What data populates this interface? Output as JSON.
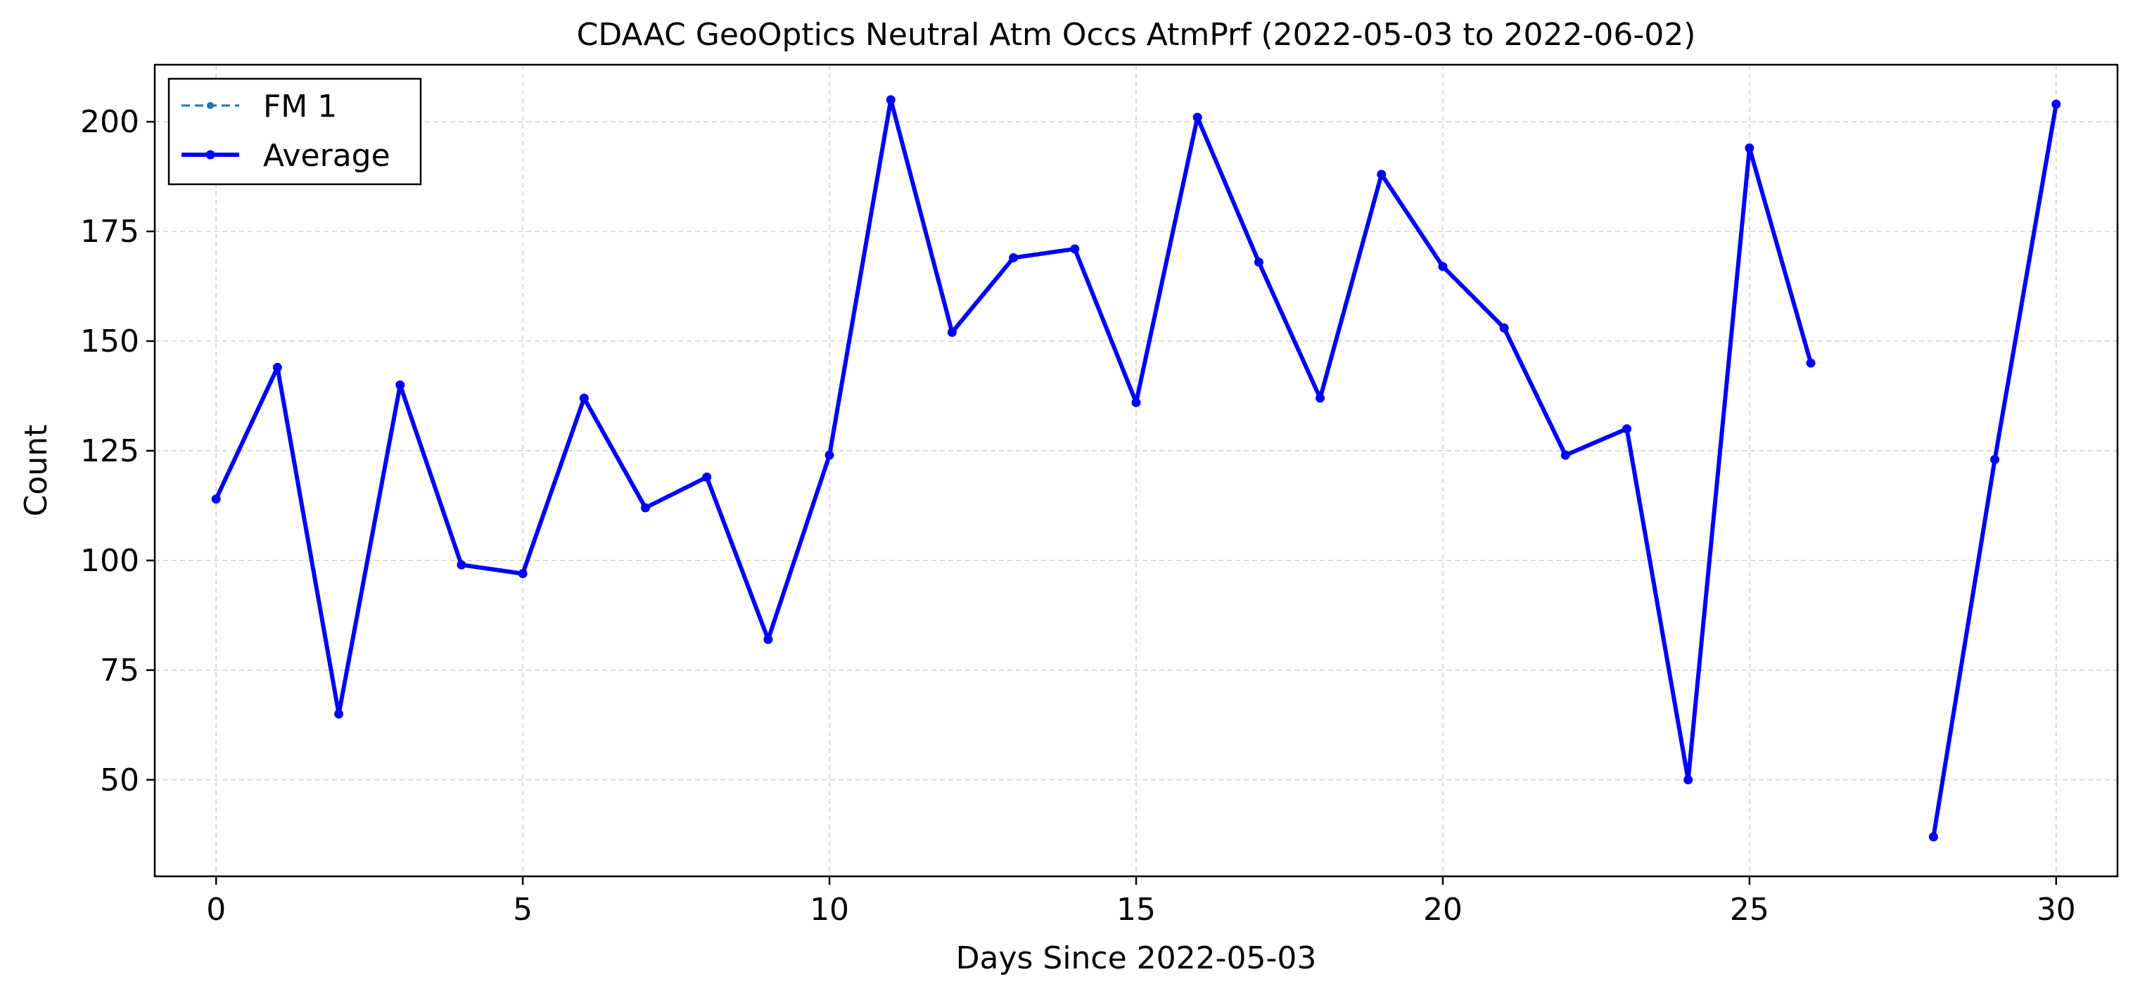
{
  "chart_data": {
    "type": "line",
    "title": "CDAAC GeoOptics Neutral Atm Occs AtmPrf (2022-05-03 to 2022-06-02)",
    "xlabel": "Days Since 2022-05-03",
    "ylabel": "Count",
    "xlim": [
      -1,
      31
    ],
    "ylim": [
      28,
      213
    ],
    "xticks": [
      0,
      5,
      10,
      15,
      20,
      25,
      30
    ],
    "yticks": [
      50,
      75,
      100,
      125,
      150,
      175,
      200
    ],
    "grid": true,
    "legend_position": "top-left",
    "x": [
      0,
      1,
      2,
      3,
      4,
      5,
      6,
      7,
      8,
      9,
      10,
      11,
      12,
      13,
      14,
      15,
      16,
      17,
      18,
      19,
      20,
      21,
      22,
      23,
      24,
      25,
      26,
      27,
      28,
      29,
      30
    ],
    "series": [
      {
        "name": "FM 1",
        "style": "dashed",
        "color": "#1f77b4",
        "values": [
          114,
          144,
          65,
          140,
          99,
          97,
          137,
          112,
          119,
          82,
          124,
          205,
          152,
          169,
          171,
          136,
          201,
          168,
          137,
          188,
          167,
          153,
          124,
          130,
          50,
          194,
          145,
          null,
          37,
          123,
          204
        ]
      },
      {
        "name": "Average",
        "style": "solid",
        "color": "#0000ff",
        "values": [
          114,
          144,
          65,
          140,
          99,
          97,
          137,
          112,
          119,
          82,
          124,
          205,
          152,
          169,
          171,
          136,
          201,
          168,
          137,
          188,
          167,
          153,
          124,
          130,
          50,
          194,
          145,
          null,
          37,
          123,
          204
        ]
      }
    ]
  }
}
